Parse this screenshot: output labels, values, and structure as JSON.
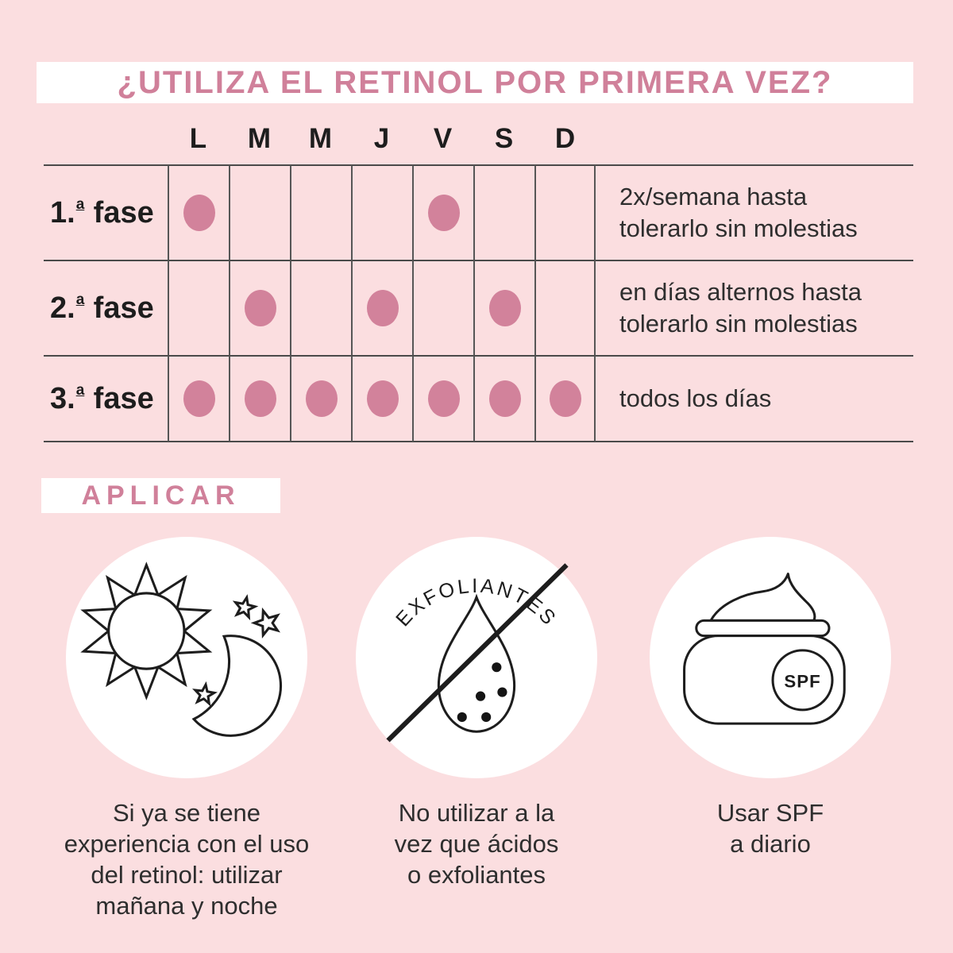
{
  "title": "¿UTILIZA EL RETINOL POR PRIMERA VEZ?",
  "colors": {
    "background": "#fbdee0",
    "panel": "#ffffff",
    "accent_pink": "#d0809a",
    "dot_pink": "#d2829b",
    "line": "#4a4a4a",
    "text_dark": "#1d1d1d",
    "text_body": "#2e2e2e"
  },
  "schedule": {
    "day_headers": [
      "L",
      "M",
      "M",
      "J",
      "V",
      "S",
      "D"
    ],
    "rows": [
      {
        "label": {
          "num": "1.",
          "ordinal": "a",
          "word": "fase"
        },
        "dots": [
          1,
          0,
          0,
          0,
          1,
          0,
          0
        ],
        "note_lines": [
          "2x/semana hasta",
          "tolerarlo sin molestias"
        ]
      },
      {
        "label": {
          "num": "2.",
          "ordinal": "a",
          "word": "fase"
        },
        "dots": [
          0,
          1,
          0,
          1,
          0,
          1,
          0
        ],
        "note_lines": [
          "en días alternos hasta",
          "tolerarlo sin molestias"
        ]
      },
      {
        "label": {
          "num": "3.",
          "ordinal": "a",
          "word": "fase"
        },
        "dots": [
          1,
          1,
          1,
          1,
          1,
          1,
          1
        ],
        "note_lines": [
          "todos los días"
        ]
      }
    ]
  },
  "apply_section": {
    "heading": "APLICAR",
    "items": [
      {
        "icon": "sun-and-moon-icon",
        "caption_lines": [
          "Si ya se tiene",
          "experiencia con el uso",
          "del retinol: utilizar",
          "mañana y noche"
        ]
      },
      {
        "icon": "no-exfoliants-drop-icon",
        "curved_label": "EXFOLIANTES",
        "caption_lines": [
          "No utilizar a la",
          "vez que ácidos",
          "o exfoliantes"
        ]
      },
      {
        "icon": "spf-jar-icon",
        "jar_label": "SPF",
        "caption_lines": [
          "Usar SPF",
          "a diario"
        ]
      }
    ]
  }
}
